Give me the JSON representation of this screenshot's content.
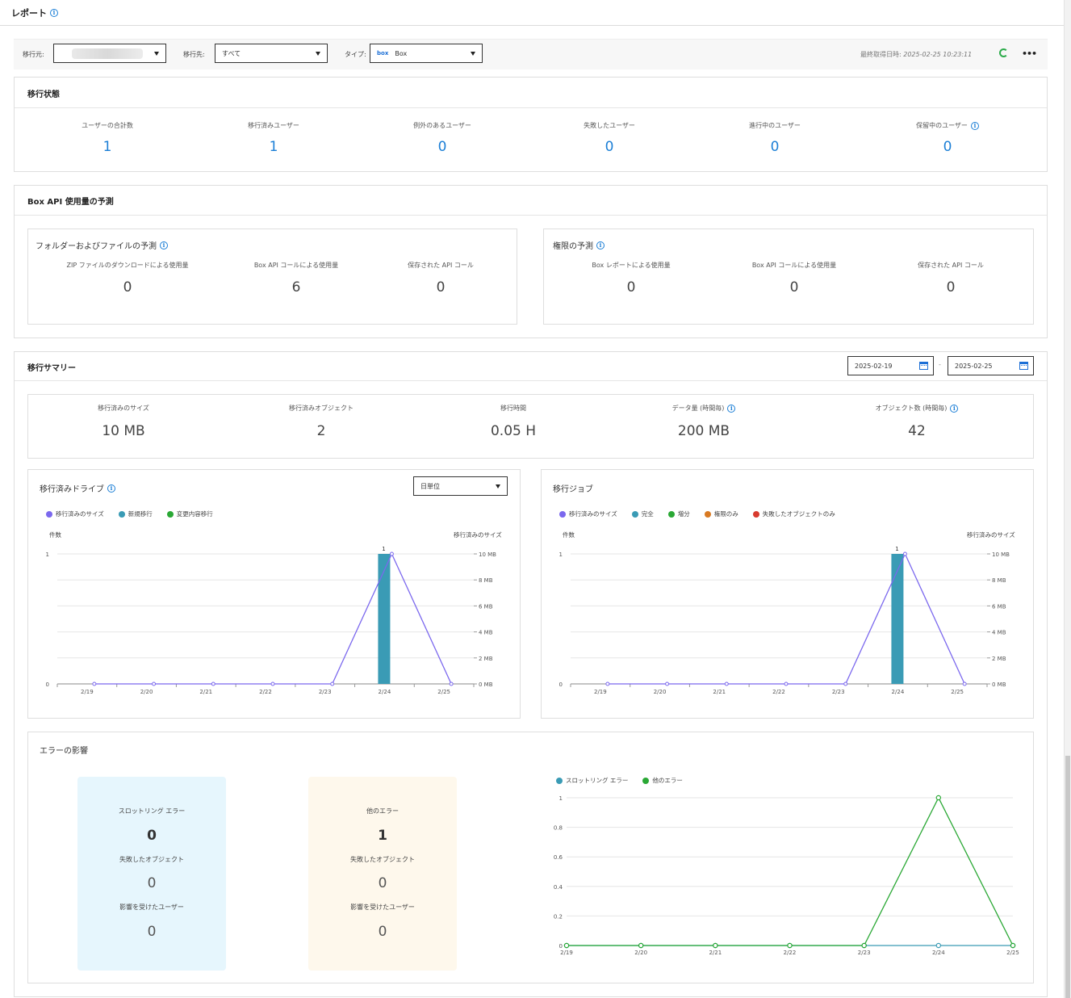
{
  "page": {
    "title": "レポート"
  },
  "filters": {
    "source_label": "移行元:",
    "dest_label": "移行先:",
    "dest_value": "すべて",
    "type_label": "タイプ:",
    "type_logo": "box",
    "type_value": "Box",
    "last_fetch_label": "最終取得日時:",
    "last_fetch_value": "2025-02-25 10:23:11"
  },
  "migration_status": {
    "title": "移行状態",
    "stats": [
      {
        "label": "ユーザーの合計数",
        "value": "1"
      },
      {
        "label": "移行済みユーザー",
        "value": "1"
      },
      {
        "label": "例外のあるユーザー",
        "value": "0"
      },
      {
        "label": "失敗したユーザー",
        "value": "0"
      },
      {
        "label": "進行中のユーザー",
        "value": "0"
      },
      {
        "label": "保留中のユーザー",
        "value": "0"
      }
    ]
  },
  "api_forecast": {
    "title": "Box API 使用量の予測",
    "folders": {
      "title": "フォルダーおよびファイルの予測",
      "stats": [
        {
          "label": "ZIP ファイルのダウンロードによる使用量",
          "value": "0"
        },
        {
          "label": "Box API コールによる使用量",
          "value": "6"
        },
        {
          "label": "保存された API コール",
          "value": "0"
        }
      ]
    },
    "permissions": {
      "title": "権限の予測",
      "stats": [
        {
          "label": "Box レポートによる使用量",
          "value": "0"
        },
        {
          "label": "Box API コールによる使用量",
          "value": "0"
        },
        {
          "label": "保存された API コール",
          "value": "0"
        }
      ]
    }
  },
  "summary": {
    "title": "移行サマリー",
    "date_from": "2025-02-19",
    "date_sep": "-",
    "date_to": "2025-02-25",
    "stats": [
      {
        "label": "移行済みのサイズ",
        "value": "10 MB"
      },
      {
        "label": "移行済みオブジェクト",
        "value": "2"
      },
      {
        "label": "移行時間",
        "value": "0.05 H"
      },
      {
        "label": "データ量 (時間毎)",
        "value": "200 MB"
      },
      {
        "label": "オブジェクト数 (時間毎)",
        "value": "42"
      }
    ]
  },
  "drive_chart": {
    "title": "移行済みドライブ",
    "granularity": "日単位",
    "legend": [
      "移行済みのサイズ",
      "新規移行",
      "変更内容移行"
    ],
    "ylabel": "件数",
    "y2label": "移行済みのサイズ"
  },
  "job_chart": {
    "title": "移行ジョブ",
    "legend": [
      "移行済みのサイズ",
      "完全",
      "増分",
      "権限のみ",
      "失敗したオブジェクトのみ"
    ],
    "ylabel": "件数",
    "y2label": "移行済みのサイズ"
  },
  "errors": {
    "title": "エラーの影響",
    "throttling": {
      "label": "スロットリング エラー",
      "value": "0",
      "failed_label": "失敗したオブジェクト",
      "failed_value": "0",
      "users_label": "影響を受けたユーザー",
      "users_value": "0"
    },
    "other": {
      "label": "他のエラー",
      "value": "1",
      "failed_label": "失敗したオブジェクト",
      "failed_value": "0",
      "users_label": "影響を受けたユーザー",
      "users_value": "0"
    },
    "legend": [
      "スロットリング エラー",
      "他のエラー"
    ]
  },
  "colors": {
    "size": "#7b68ee",
    "new": "#3a9bb5",
    "change": "#2aa835",
    "full": "#3a9bb5",
    "incr": "#2aa835",
    "perm": "#d97a22",
    "failed": "#d83b2f",
    "throttle": "#3a9bb5",
    "other": "#2aa835",
    "link": "#1c7fd6"
  },
  "chart_data": [
    {
      "type": "bar",
      "name": "drive",
      "categories": [
        "2/19",
        "2/20",
        "2/21",
        "2/22",
        "2/23",
        "2/24",
        "2/25"
      ],
      "series": [
        {
          "name": "新規移行",
          "values": [
            0,
            0,
            0,
            0,
            0,
            1,
            0
          ]
        },
        {
          "name": "移行済みのサイズ",
          "type": "line",
          "axis": "right",
          "values": [
            0,
            0,
            0,
            0,
            0,
            10,
            0
          ]
        }
      ],
      "bar_labels": [
        "",
        "",
        "",
        "",
        "",
        "1",
        ""
      ],
      "ylabel": "件数",
      "y2label": "移行済みのサイズ",
      "yticks": [
        "0",
        "1"
      ],
      "ylim": [
        0,
        1
      ],
      "y2ticks": [
        "0 MB",
        "2 MB",
        "4 MB",
        "6 MB",
        "8 MB",
        "10 MB"
      ],
      "y2lim": [
        0,
        10
      ]
    },
    {
      "type": "bar",
      "name": "jobs",
      "categories": [
        "2/19",
        "2/20",
        "2/21",
        "2/22",
        "2/23",
        "2/24",
        "2/25"
      ],
      "series": [
        {
          "name": "完全",
          "values": [
            0,
            0,
            0,
            0,
            0,
            1,
            0
          ]
        },
        {
          "name": "移行済みのサイズ",
          "type": "line",
          "axis": "right",
          "values": [
            0,
            0,
            0,
            0,
            0,
            10,
            0
          ]
        }
      ],
      "bar_labels": [
        "",
        "",
        "",
        "",
        "",
        "1",
        ""
      ],
      "ylabel": "件数",
      "y2label": "移行済みのサイズ",
      "yticks": [
        "0",
        "1"
      ],
      "ylim": [
        0,
        1
      ],
      "y2ticks": [
        "0 MB",
        "2 MB",
        "4 MB",
        "6 MB",
        "8 MB",
        "10 MB"
      ],
      "y2lim": [
        0,
        10
      ]
    },
    {
      "type": "line",
      "name": "errors",
      "categories": [
        "2/19",
        "2/20",
        "2/21",
        "2/22",
        "2/23",
        "2/24",
        "2/25"
      ],
      "series": [
        {
          "name": "スロットリング エラー",
          "values": [
            0,
            0,
            0,
            0,
            0,
            0,
            0
          ]
        },
        {
          "name": "他のエラー",
          "values": [
            0,
            0,
            0,
            0,
            0,
            1,
            0
          ]
        }
      ],
      "yticks": [
        "0",
        "0.2",
        "0.4",
        "0.6",
        "0.8",
        "1"
      ],
      "ylim": [
        0,
        1
      ]
    }
  ]
}
